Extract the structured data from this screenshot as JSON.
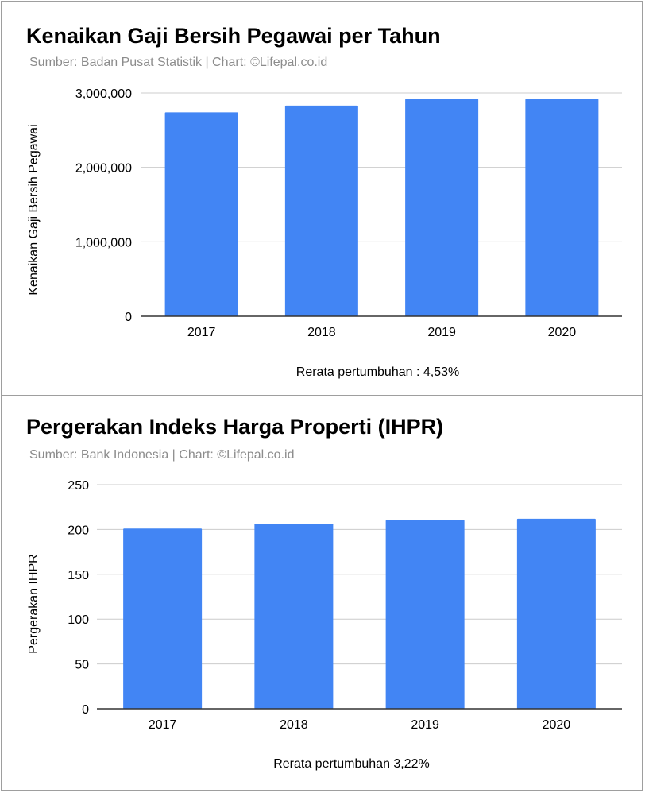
{
  "chart_data": [
    {
      "type": "bar",
      "title": "Kenaikan Gaji Bersih Pegawai per Tahun",
      "subtitle": "Sumber: Badan Pusat Statistik | Chart: ©Lifepal.co.id",
      "ylabel": "Kenaikan Gaji Bersih Pegawai",
      "xlabel": "",
      "categories": [
        "2017",
        "2018",
        "2019",
        "2020"
      ],
      "values": [
        2740000,
        2830000,
        2920000,
        2920000
      ],
      "ylim": [
        0,
        3000000
      ],
      "yticks": [
        0,
        1000000,
        2000000,
        3000000
      ],
      "ytick_labels": [
        "0",
        "1,000,000",
        "2,000,000",
        "3,000,000"
      ],
      "footnote": "Rerata pertumbuhan : 4,53%",
      "bar_color": "#4285f4",
      "grid": true,
      "legend": "none"
    },
    {
      "type": "bar",
      "title": "Pergerakan Indeks Harga Properti (IHPR)",
      "subtitle": "Sumber: Bank Indonesia | Chart: ©Lifepal.co.id",
      "ylabel": "Pergerakan IHPR",
      "xlabel": "",
      "categories": [
        "2017",
        "2018",
        "2019",
        "2020"
      ],
      "values": [
        201,
        206.5,
        210.5,
        212
      ],
      "ylim": [
        0,
        250
      ],
      "yticks": [
        0,
        50,
        100,
        150,
        200,
        250
      ],
      "ytick_labels": [
        "0",
        "50",
        "100",
        "150",
        "200",
        "250"
      ],
      "footnote": "Rerata pertumbuhan  3,22%",
      "bar_color": "#4285f4",
      "grid": true,
      "legend": "none"
    }
  ]
}
